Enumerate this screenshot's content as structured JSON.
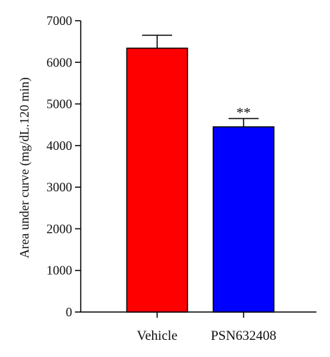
{
  "chart_data": {
    "type": "bar",
    "title": "",
    "xlabel": "",
    "ylabel": "Area under curve (mg/dL.120 min)",
    "ylim": [
      0,
      7000
    ],
    "yticks": [
      0,
      1000,
      2000,
      3000,
      4000,
      5000,
      6000,
      7000
    ],
    "ytick_labels": [
      "0",
      "1000",
      "2000",
      "3000",
      "4000",
      "5000",
      "6000",
      "7000"
    ],
    "categories": [
      "Vehicle",
      "PSN632408"
    ],
    "values": [
      6340,
      4450
    ],
    "errors": [
      310,
      200
    ],
    "bar_colors": [
      "#ff0000",
      "#0000ff"
    ],
    "annotations": [
      {
        "category": "PSN632408",
        "text": "**"
      }
    ],
    "grid": false,
    "legend": "none"
  }
}
